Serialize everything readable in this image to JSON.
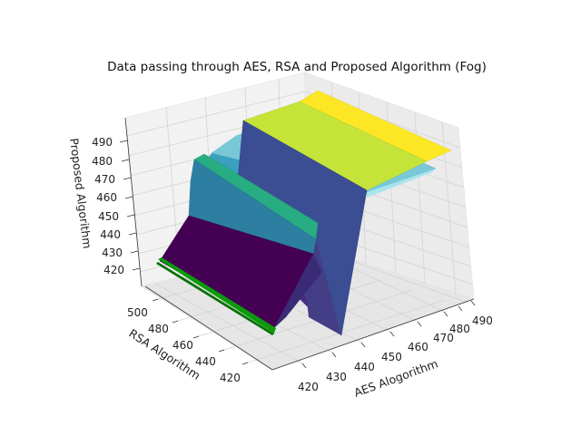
{
  "chart_data": {
    "type": "surface3d",
    "title": "Data passing through AES, RSA and Proposed Algorithm (Fog)",
    "xlabel": "AES Alogorithm",
    "ylabel": "RSA Algorithm",
    "zlabel": "Proposed Algorithm",
    "x_ticks": [
      420,
      430,
      440,
      450,
      460,
      470,
      480,
      490
    ],
    "y_ticks": [
      420,
      440,
      460,
      480,
      500
    ],
    "z_ticks": [
      420,
      430,
      440,
      450,
      460,
      470,
      480,
      490
    ],
    "xlim": [
      415,
      492
    ],
    "ylim": [
      410,
      510
    ],
    "zlim": [
      413,
      497
    ],
    "grid": true,
    "colormap": "viridis",
    "surfaces": [
      {
        "name": "",
        "x": [
          415,
          425,
          425.5,
          450,
          492
        ],
        "z_flat": 490,
        "dip_at_x": 425.5,
        "dip_z": 413,
        "colormap": "viridis"
      },
      {
        "name": "",
        "x": [
          415,
          425,
          425.5,
          450,
          492
        ],
        "z_flat": 472,
        "colormap": "cyan"
      },
      {
        "name": "",
        "x": [
          415,
          424
        ],
        "z_flat": 460,
        "colormap": "teal"
      },
      {
        "name": "",
        "x": [
          415,
          424
        ],
        "z_flat": 430,
        "colormap": "green"
      }
    ]
  }
}
